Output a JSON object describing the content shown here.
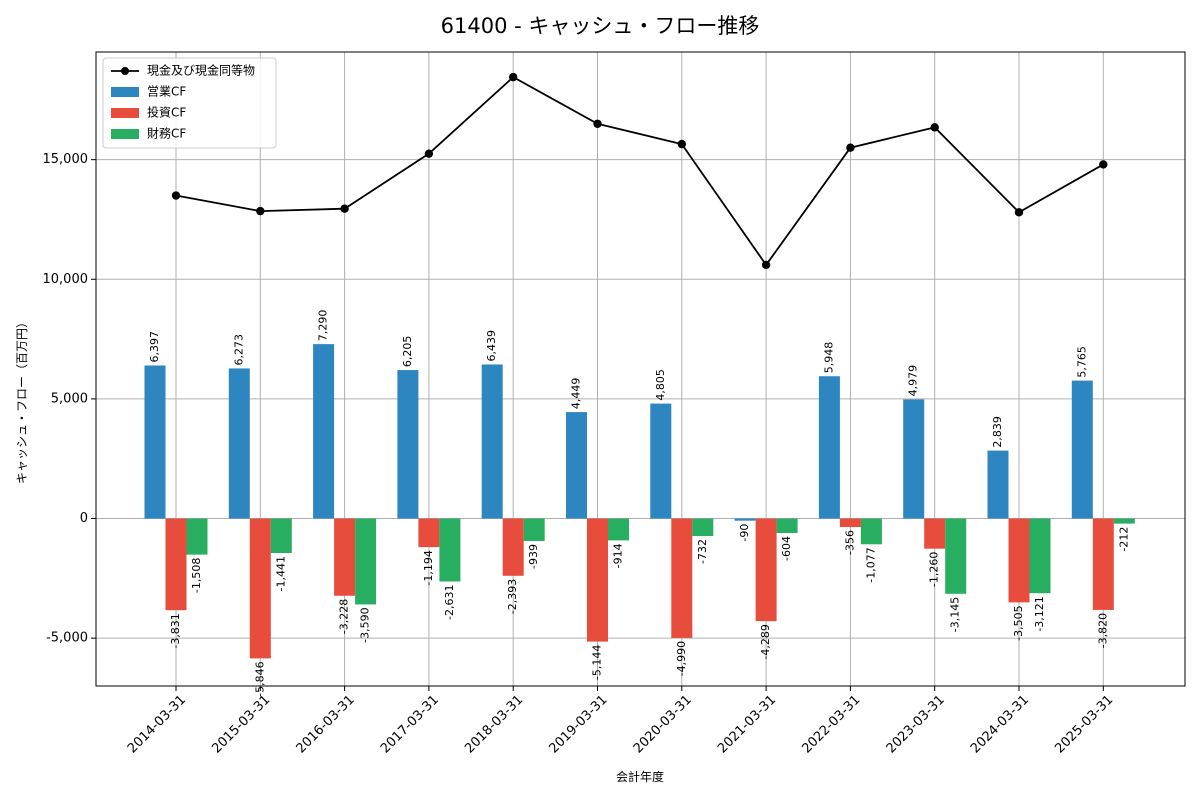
{
  "chart_data": {
    "type": "bar",
    "title": "61400 - キャッシュ・フロー推移",
    "xlabel": "会計年度",
    "ylabel": "キャッシュ・フロー（百万円）",
    "categories": [
      "2014-03-31",
      "2015-03-31",
      "2016-03-31",
      "2017-03-31",
      "2018-03-31",
      "2019-03-31",
      "2020-03-31",
      "2021-03-31",
      "2022-03-31",
      "2023-03-31",
      "2024-03-31",
      "2025-03-31"
    ],
    "ylim": [
      -7000,
      19500
    ],
    "yticks": [
      -5000,
      0,
      5000,
      10000,
      15000
    ],
    "ytick_labels": [
      "-5,000",
      "0",
      "5,000",
      "10,000",
      "15,000"
    ],
    "grid": true,
    "legend_position": "top-left",
    "series": [
      {
        "name": "営業CF",
        "kind": "bar",
        "color": "#2e86c1",
        "values": [
          6397,
          6273,
          7290,
          6205,
          6439,
          4449,
          4805,
          -90,
          5948,
          4979,
          2839,
          5765
        ],
        "labels": [
          "6,397",
          "6,273",
          "7,290",
          "6,205",
          "6,439",
          "4,449",
          "4,805",
          "-90",
          "5,948",
          "4,979",
          "2,839",
          "5,765"
        ]
      },
      {
        "name": "投資CF",
        "kind": "bar",
        "color": "#e74c3c",
        "values": [
          -3831,
          -5846,
          -3228,
          -1194,
          -2393,
          -5144,
          -4990,
          -4289,
          -356,
          -1260,
          -3505,
          -3820
        ],
        "labels": [
          "-3,831",
          "-5,846",
          "-3,228",
          "-1,194",
          "-2,393",
          "-5,144",
          "-4,990",
          "-4,289",
          "-356",
          "-1,260",
          "-3,505",
          "-3,820"
        ]
      },
      {
        "name": "財務CF",
        "kind": "bar",
        "color": "#27ae60",
        "values": [
          -1508,
          -1441,
          -3590,
          -2631,
          -939,
          -914,
          -732,
          -604,
          -1077,
          -3145,
          -3121,
          -212
        ],
        "labels": [
          "-1,508",
          "-1,441",
          "-3,590",
          "-2,631",
          "-939",
          "-914",
          "-732",
          "-604",
          "-1,077",
          "-3,145",
          "-3,121",
          "-212"
        ]
      },
      {
        "name": "現金及び現金同等物",
        "kind": "line",
        "color": "#000000",
        "values": [
          13500,
          12850,
          12950,
          15250,
          18450,
          16500,
          15650,
          10600,
          15500,
          16350,
          12800,
          14800
        ]
      }
    ]
  }
}
